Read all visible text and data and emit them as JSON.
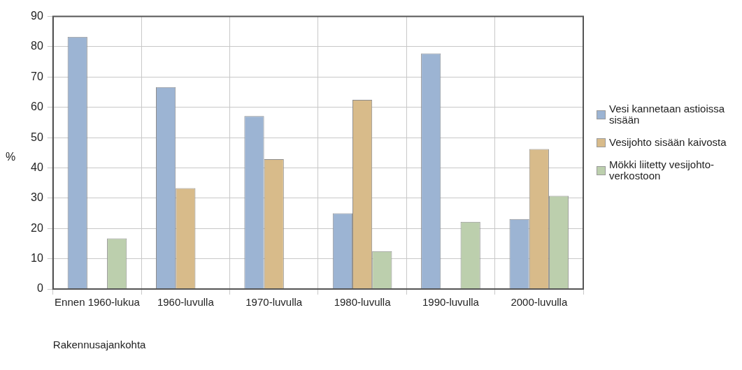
{
  "chart_data": {
    "type": "bar",
    "xlabel": "Rakennusajankohta",
    "ylabel": "%",
    "categories": [
      "Ennen 1960-lukua",
      "1960-luvulla",
      "1970-luvulla",
      "1980-luvulla",
      "1990-luvulla",
      "2000-luvulla"
    ],
    "series": [
      {
        "name": "Vesi kannetaan astioissa sisään",
        "color": "#9cb4d3",
        "values": [
          83.3,
          66.7,
          57.1,
          25,
          77.8,
          23.1
        ]
      },
      {
        "name": "Vesijohto sisään kaivosta",
        "color": "#d8bb8a",
        "values": [
          0,
          33.3,
          42.9,
          62.5,
          0,
          46.2
        ]
      },
      {
        "name": "Mökki liitetty vesijohto-verkostoon",
        "color": "#bccfad",
        "values": [
          16.7,
          0,
          0,
          12.5,
          22.2,
          30.8
        ]
      }
    ],
    "ylim": [
      0,
      90
    ],
    "yticks": [
      0,
      10,
      20,
      30,
      40,
      50,
      60,
      70,
      80,
      90
    ],
    "grid": true,
    "legend": "right"
  }
}
